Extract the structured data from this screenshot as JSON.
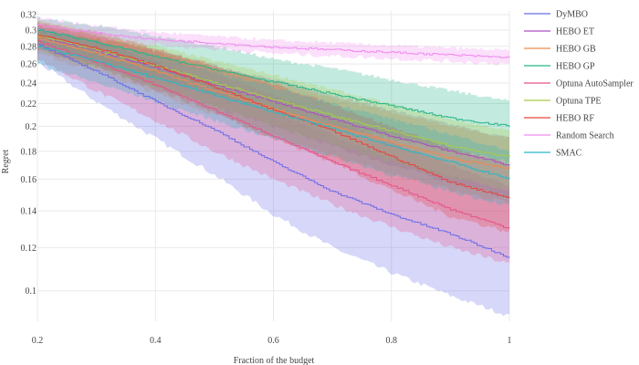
{
  "chart_data": {
    "type": "line",
    "title": "",
    "xlabel": "Fraction of the budget",
    "ylabel": "Regret",
    "xlim": [
      0.2,
      1.0
    ],
    "ylim": [
      0.088,
      0.325
    ],
    "y_scale": "log",
    "grid": true,
    "legend_placement": "right",
    "x_ticks": [
      "0.2",
      "0.4",
      "0.6",
      "0.8",
      "1"
    ],
    "y_ticks": [
      "0.1",
      "0.12",
      "0.14",
      "0.16",
      "0.18",
      "0.2",
      "0.22",
      "0.24",
      "0.26",
      "0.28",
      "0.3",
      "0.32"
    ],
    "x_tick_values": [
      0.2,
      0.4,
      0.6,
      0.8,
      1.0
    ],
    "y_tick_values": [
      0.1,
      0.12,
      0.14,
      0.16,
      0.18,
      0.2,
      0.22,
      0.24,
      0.26,
      0.28,
      0.3,
      0.32
    ],
    "x": [
      0.2,
      0.3,
      0.4,
      0.5,
      0.6,
      0.7,
      0.8,
      0.9,
      1.0
    ],
    "series": [
      {
        "name": "DyMBO",
        "color": "#6a6ee8",
        "values": [
          0.282,
          0.252,
          0.222,
          0.197,
          0.172,
          0.152,
          0.138,
          0.127,
          0.115
        ],
        "lower": [
          0.262,
          0.222,
          0.19,
          0.163,
          0.138,
          0.12,
          0.108,
          0.098,
          0.09
        ],
        "upper": [
          0.305,
          0.287,
          0.262,
          0.237,
          0.212,
          0.192,
          0.175,
          0.162,
          0.152
        ]
      },
      {
        "name": "HEBO ET",
        "color": "#ad4fc0",
        "values": [
          0.292,
          0.275,
          0.256,
          0.238,
          0.222,
          0.206,
          0.192,
          0.18,
          0.17
        ],
        "lower": [
          0.277,
          0.258,
          0.237,
          0.217,
          0.2,
          0.184,
          0.17,
          0.158,
          0.148
        ],
        "upper": [
          0.308,
          0.292,
          0.275,
          0.258,
          0.243,
          0.228,
          0.214,
          0.201,
          0.19
        ]
      },
      {
        "name": "HEBO GB",
        "color": "#ee8a4f",
        "values": [
          0.29,
          0.272,
          0.252,
          0.232,
          0.215,
          0.2,
          0.187,
          0.175,
          0.167
        ],
        "lower": [
          0.272,
          0.252,
          0.23,
          0.21,
          0.192,
          0.177,
          0.164,
          0.153,
          0.145
        ],
        "upper": [
          0.31,
          0.292,
          0.275,
          0.257,
          0.24,
          0.225,
          0.212,
          0.2,
          0.19
        ]
      },
      {
        "name": "HEBO GP",
        "color": "#27b589",
        "values": [
          0.3,
          0.285,
          0.268,
          0.254,
          0.241,
          0.229,
          0.218,
          0.207,
          0.2
        ],
        "lower": [
          0.285,
          0.262,
          0.245,
          0.228,
          0.214,
          0.2,
          0.19,
          0.18,
          0.172
        ],
        "upper": [
          0.315,
          0.305,
          0.292,
          0.28,
          0.265,
          0.255,
          0.243,
          0.232,
          0.222
        ]
      },
      {
        "name": "Optuna AutoSampler",
        "color": "#e8538d",
        "values": [
          0.286,
          0.262,
          0.238,
          0.214,
          0.192,
          0.172,
          0.156,
          0.141,
          0.13
        ],
        "lower": [
          0.266,
          0.232,
          0.205,
          0.18,
          0.16,
          0.144,
          0.131,
          0.12,
          0.112
        ],
        "upper": [
          0.308,
          0.292,
          0.273,
          0.25,
          0.227,
          0.206,
          0.187,
          0.17,
          0.155
        ]
      },
      {
        "name": "Optuna TPE",
        "color": "#a8c94a",
        "values": [
          0.293,
          0.276,
          0.258,
          0.24,
          0.224,
          0.209,
          0.196,
          0.184,
          0.176
        ],
        "lower": [
          0.276,
          0.256,
          0.236,
          0.217,
          0.2,
          0.185,
          0.172,
          0.161,
          0.153
        ],
        "upper": [
          0.312,
          0.297,
          0.28,
          0.263,
          0.248,
          0.233,
          0.219,
          0.206,
          0.196
        ]
      },
      {
        "name": "HEBO RF",
        "color": "#e8453c",
        "values": [
          0.294,
          0.278,
          0.258,
          0.236,
          0.214,
          0.196,
          0.176,
          0.158,
          0.148
        ],
        "lower": [
          0.276,
          0.256,
          0.234,
          0.212,
          0.19,
          0.172,
          0.153,
          0.137,
          0.128
        ],
        "upper": [
          0.31,
          0.296,
          0.277,
          0.258,
          0.238,
          0.219,
          0.199,
          0.182,
          0.17
        ]
      },
      {
        "name": "Random Search",
        "color": "#f08bf0",
        "values": [
          0.306,
          0.296,
          0.288,
          0.284,
          0.279,
          0.276,
          0.273,
          0.27,
          0.267
        ],
        "lower": [
          0.298,
          0.289,
          0.282,
          0.277,
          0.272,
          0.269,
          0.266,
          0.263,
          0.26
        ],
        "upper": [
          0.316,
          0.305,
          0.297,
          0.292,
          0.287,
          0.284,
          0.281,
          0.278,
          0.275
        ]
      },
      {
        "name": "SMAC",
        "color": "#2bb7c7",
        "values": [
          0.28,
          0.263,
          0.245,
          0.228,
          0.212,
          0.198,
          0.184,
          0.172,
          0.16
        ],
        "lower": [
          0.26,
          0.24,
          0.222,
          0.205,
          0.19,
          0.176,
          0.163,
          0.152,
          0.143
        ],
        "upper": [
          0.302,
          0.286,
          0.268,
          0.251,
          0.235,
          0.22,
          0.206,
          0.193,
          0.18
        ]
      }
    ]
  }
}
